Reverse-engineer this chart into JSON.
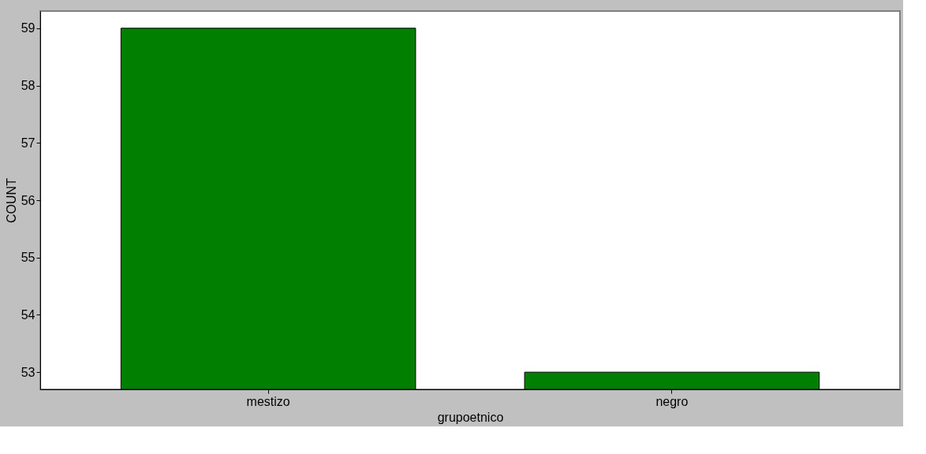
{
  "chart_data": {
    "type": "bar",
    "xlabel": "grupoetnico",
    "ylabel": "COUNT",
    "categories": [
      "mestizo",
      "negro"
    ],
    "values": [
      59,
      53
    ],
    "color": "#007f00",
    "ylim": [
      52.7,
      59.3
    ],
    "yticks": [
      53,
      54,
      55,
      56,
      57,
      58,
      59
    ],
    "grid": false
  }
}
